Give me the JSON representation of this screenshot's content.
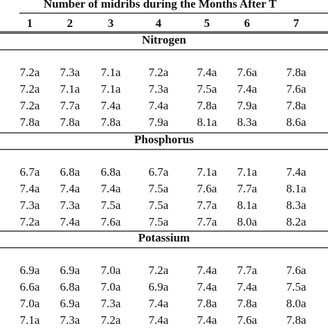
{
  "header": {
    "title": "Number of midribs during the Months After T"
  },
  "table": {
    "columns": [
      "1",
      "2",
      "3",
      "4",
      "5",
      "6",
      "7"
    ],
    "sections": [
      {
        "label": "Nitrogen",
        "rows": [
          [
            "7.2a",
            "7.3a",
            "7.1a",
            "7.2a",
            "7.4a",
            "7.6a",
            "7.8a"
          ],
          [
            "7.2a",
            "7.1a",
            "7.1a",
            "7.3a",
            "7.5a",
            "7.4a",
            "7.6a"
          ],
          [
            "7.2a",
            "7.7a",
            "7.4a",
            "7.4a",
            "7.8a",
            "7.9a",
            "7.8a"
          ],
          [
            "7.8a",
            "7.8a",
            "7.8a",
            "7.9a",
            "8.1a",
            "8.3a",
            "8.6a"
          ]
        ]
      },
      {
        "label": "Phosphorus",
        "rows": [
          [
            "6.7a",
            "6.8a",
            "6.8a",
            "6.7a",
            "7.1a",
            "7.1a",
            "7.4a"
          ],
          [
            "7.4a",
            "7.4a",
            "7.4a",
            "7.5a",
            "7.6a",
            "7.7a",
            "8.1a"
          ],
          [
            "7.3a",
            "7.3a",
            "7.5a",
            "7.5a",
            "7.7a",
            "8.1a",
            "8.3a"
          ],
          [
            "7.2a",
            "7.4a",
            "7.6a",
            "7.5a",
            "7.7a",
            "8.0a",
            "8.2a"
          ]
        ]
      },
      {
        "label": "Potassium",
        "rows": [
          [
            "6.9a",
            "6.9a",
            "7.0a",
            "7.2a",
            "7.4a",
            "7.7a",
            "7.6a"
          ],
          [
            "6.6a",
            "6.8a",
            "7.0a",
            "6.9a",
            "7.4a",
            "7.4a",
            "7.5a"
          ],
          [
            "7.0a",
            "6.9a",
            "7.3a",
            "7.4a",
            "7.8a",
            "7.8a",
            "8.0a"
          ],
          [
            "7.1a",
            "7.3a",
            "7.2a",
            "7.4a",
            "7.4a",
            "7.6a",
            "7.8a"
          ]
        ]
      }
    ]
  }
}
